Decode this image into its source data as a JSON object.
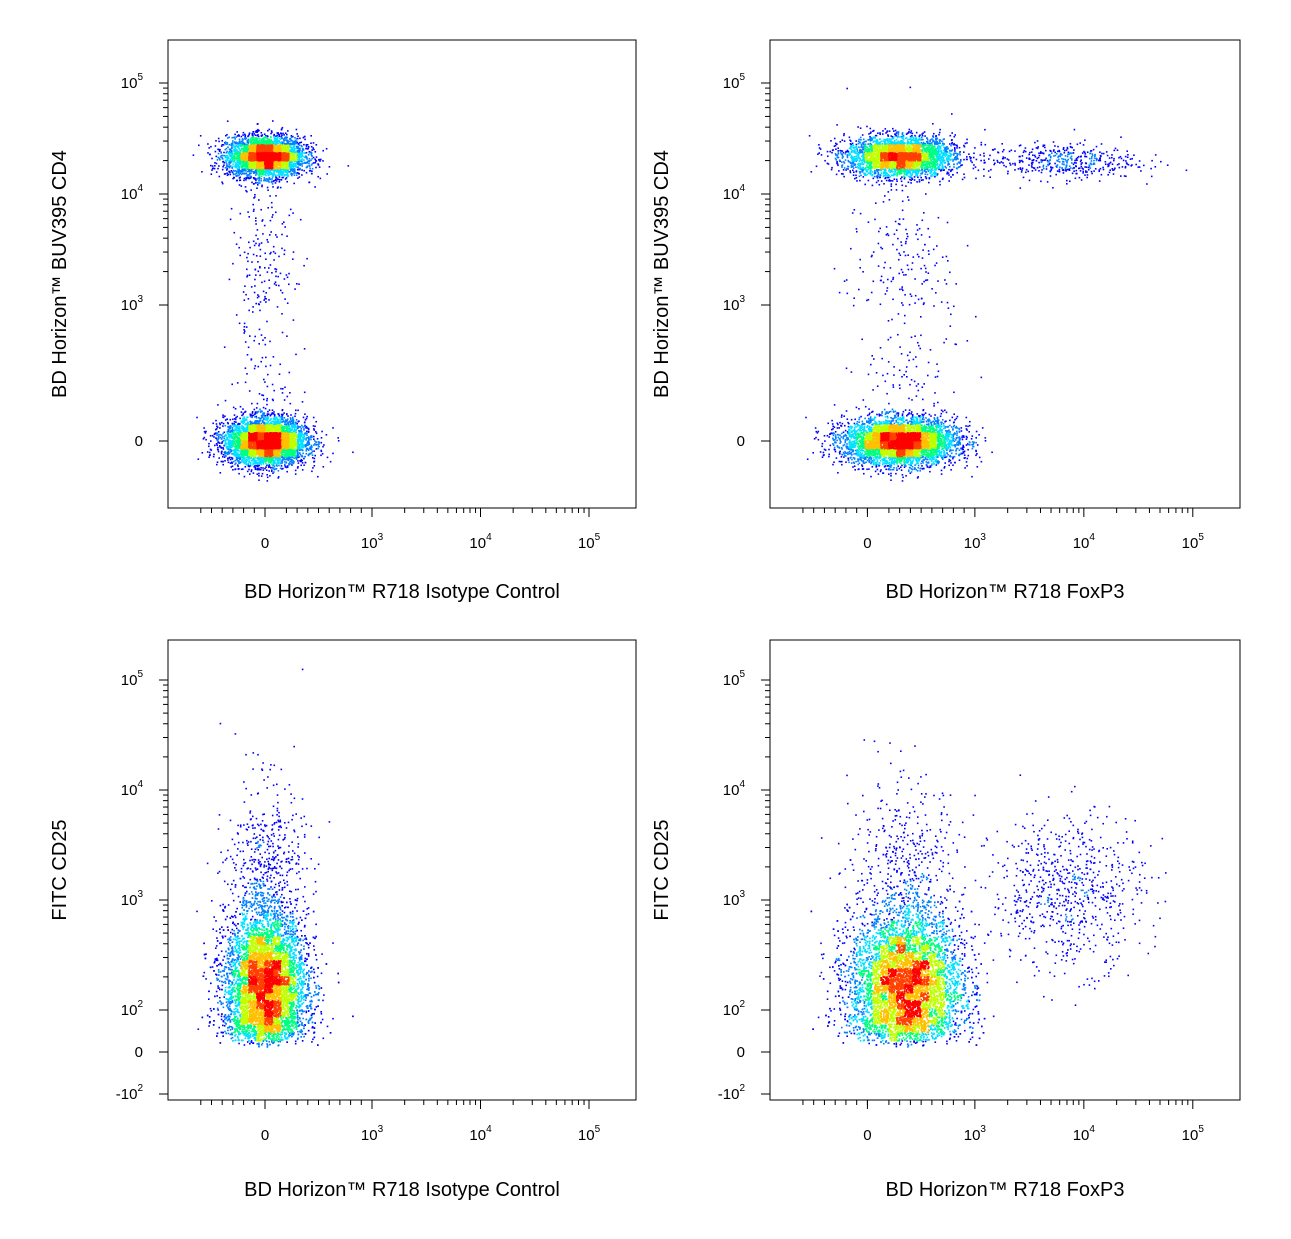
{
  "chart_data": [
    {
      "type": "scatter",
      "panel": "top-left",
      "xlabel": "BD Horizon™ R718 Isotype Control",
      "ylabel": "BD Horizon™ BUV395 CD4",
      "x_scale": "biexponential",
      "y_scale": "biexponential",
      "x_ticks": [
        {
          "value": 0,
          "base": "0",
          "exp": ""
        },
        {
          "value": 1000,
          "base": "10",
          "exp": "3"
        },
        {
          "value": 10000,
          "base": "10",
          "exp": "4"
        },
        {
          "value": 100000,
          "base": "10",
          "exp": "5"
        }
      ],
      "y_ticks": [
        {
          "value": 0,
          "base": "0",
          "exp": ""
        },
        {
          "value": 1000,
          "base": "10",
          "exp": "3"
        },
        {
          "value": 10000,
          "base": "10",
          "exp": "4"
        },
        {
          "value": 100000,
          "base": "10",
          "exp": "5"
        }
      ],
      "populations": [
        {
          "x_center": 0,
          "x_spread": 180,
          "y_center": 22000,
          "y_spread": 0.09,
          "y_log": true,
          "weight": 0.43
        },
        {
          "x_center": 0,
          "x_spread": 190,
          "y_center": 0,
          "y_spread": 85,
          "y_log": false,
          "weight": 0.54
        },
        {
          "x_center": 0,
          "x_spread": 150,
          "y_center": 1500,
          "y_spread": 0.5,
          "y_log": true,
          "weight": 0.03
        }
      ]
    },
    {
      "type": "scatter",
      "panel": "top-right",
      "xlabel": "BD Horizon™ R718 FoxP3",
      "ylabel": "BD Horizon™ BUV395 CD4",
      "x_scale": "biexponential",
      "y_scale": "biexponential",
      "x_ticks": [
        {
          "value": 0,
          "base": "0",
          "exp": ""
        },
        {
          "value": 1000,
          "base": "10",
          "exp": "3"
        },
        {
          "value": 10000,
          "base": "10",
          "exp": "4"
        },
        {
          "value": 100000,
          "base": "10",
          "exp": "5"
        }
      ],
      "y_ticks": [
        {
          "value": 0,
          "base": "0",
          "exp": ""
        },
        {
          "value": 1000,
          "base": "10",
          "exp": "3"
        },
        {
          "value": 10000,
          "base": "10",
          "exp": "4"
        },
        {
          "value": 100000,
          "base": "10",
          "exp": "5"
        }
      ],
      "populations": [
        {
          "x_center": 300,
          "x_spread": 250,
          "y_center": 22000,
          "y_spread": 0.09,
          "y_log": true,
          "weight": 0.38
        },
        {
          "x_center": 6000,
          "x_spread": 0.35,
          "x_log": true,
          "y_center": 20000,
          "y_spread": 0.08,
          "y_log": true,
          "weight": 0.05
        },
        {
          "x_center": 300,
          "x_spread": 260,
          "y_center": 0,
          "y_spread": 85,
          "y_log": false,
          "weight": 0.54
        },
        {
          "x_center": 300,
          "x_spread": 250,
          "y_center": 1500,
          "y_spread": 0.5,
          "y_log": true,
          "weight": 0.03
        }
      ]
    },
    {
      "type": "scatter",
      "panel": "bottom-left",
      "xlabel": "BD Horizon™ R718 Isotype Control",
      "ylabel": "FITC CD25",
      "x_scale": "biexponential",
      "y_scale": "biexponential",
      "x_ticks": [
        {
          "value": 0,
          "base": "0",
          "exp": ""
        },
        {
          "value": 1000,
          "base": "10",
          "exp": "3"
        },
        {
          "value": 10000,
          "base": "10",
          "exp": "4"
        },
        {
          "value": 100000,
          "base": "10",
          "exp": "5"
        }
      ],
      "y_ticks": [
        {
          "value": -100,
          "base": "-10",
          "exp": "2"
        },
        {
          "value": 0,
          "base": "0",
          "exp": ""
        },
        {
          "value": 100,
          "base": "10",
          "exp": "2"
        },
        {
          "value": 1000,
          "base": "10",
          "exp": "3"
        },
        {
          "value": 10000,
          "base": "10",
          "exp": "4"
        },
        {
          "value": 100000,
          "base": "10",
          "exp": "5"
        }
      ],
      "populations": [
        {
          "x_center": 0,
          "x_spread": 190,
          "y_center": 170,
          "y_spread": 0.32,
          "y_log": true,
          "weight": 0.93
        },
        {
          "x_center": 0,
          "x_spread": 180,
          "y_center": 1500,
          "y_spread": 0.45,
          "y_log": true,
          "weight": 0.07
        }
      ]
    },
    {
      "type": "scatter",
      "panel": "bottom-right",
      "xlabel": "BD Horizon™ R718 FoxP3",
      "ylabel": "FITC CD25",
      "x_scale": "biexponential",
      "y_scale": "biexponential",
      "x_ticks": [
        {
          "value": 0,
          "base": "0",
          "exp": ""
        },
        {
          "value": 1000,
          "base": "10",
          "exp": "3"
        },
        {
          "value": 10000,
          "base": "10",
          "exp": "4"
        },
        {
          "value": 100000,
          "base": "10",
          "exp": "5"
        }
      ],
      "y_ticks": [
        {
          "value": -100,
          "base": "-10",
          "exp": "2"
        },
        {
          "value": 0,
          "base": "0",
          "exp": ""
        },
        {
          "value": 100,
          "base": "10",
          "exp": "2"
        },
        {
          "value": 1000,
          "base": "10",
          "exp": "3"
        },
        {
          "value": 10000,
          "base": "10",
          "exp": "4"
        },
        {
          "value": 100000,
          "base": "10",
          "exp": "5"
        }
      ],
      "populations": [
        {
          "x_center": 350,
          "x_spread": 260,
          "y_center": 170,
          "y_spread": 0.32,
          "y_log": true,
          "weight": 0.86
        },
        {
          "x_center": 7000,
          "x_spread": 0.35,
          "x_log": true,
          "y_center": 1200,
          "y_spread": 0.35,
          "y_log": true,
          "weight": 0.08
        },
        {
          "x_center": 350,
          "x_spread": 260,
          "y_center": 1500,
          "y_spread": 0.45,
          "y_log": true,
          "weight": 0.06
        }
      ]
    }
  ],
  "colors": {
    "density_scale": [
      "#0000ff",
      "#0080ff",
      "#00e0ff",
      "#00ff80",
      "#c0ff00",
      "#ffc000",
      "#ff4000",
      "#ff0000"
    ],
    "axis": "#000000",
    "background": "#ffffff"
  }
}
